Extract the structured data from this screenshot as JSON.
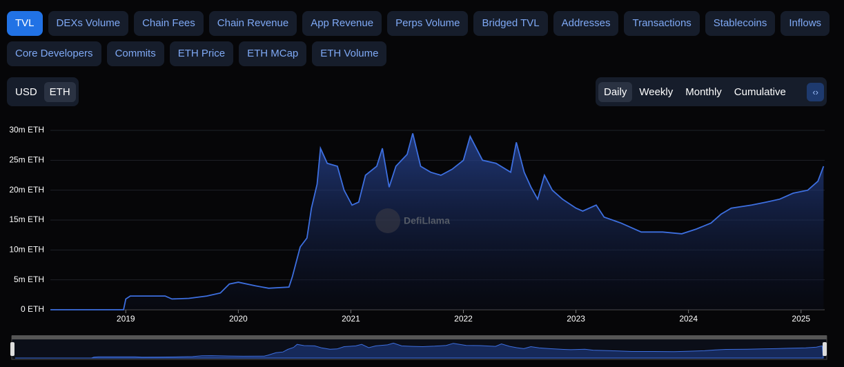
{
  "tabs": [
    "TVL",
    "DEXs Volume",
    "Chain Fees",
    "Chain Revenue",
    "App Revenue",
    "Perps Volume",
    "Bridged TVL",
    "Addresses",
    "Transactions",
    "Stablecoins",
    "Inflows",
    "Core Developers",
    "Commits",
    "ETH Price",
    "ETH MCap",
    "ETH Volume"
  ],
  "currency_toggle": [
    "USD",
    "ETH"
  ],
  "period_toggle": [
    "Daily",
    "Weekly",
    "Monthly",
    "Cumulative"
  ],
  "watermark": "DefiLlama",
  "chart_data": {
    "type": "line",
    "x": [
      2018.33,
      2018.98,
      2019.0,
      2019.04,
      2019.35,
      2019.41,
      2019.56,
      2019.72,
      2019.84,
      2019.92,
      2020.0,
      2020.15,
      2020.27,
      2020.45,
      2020.48,
      2020.55,
      2020.61,
      2020.65,
      2020.7,
      2020.73,
      2020.79,
      2020.88,
      2020.94,
      2021.01,
      2021.07,
      2021.13,
      2021.23,
      2021.28,
      2021.34,
      2021.4,
      2021.5,
      2021.55,
      2021.62,
      2021.71,
      2021.8,
      2021.9,
      2022.0,
      2022.06,
      2022.17,
      2022.29,
      2022.42,
      2022.47,
      2022.54,
      2022.6,
      2022.66,
      2022.72,
      2022.79,
      2022.88,
      2023.0,
      2023.06,
      2023.18,
      2023.25,
      2023.4,
      2023.58,
      2023.77,
      2023.94,
      2024.07,
      2024.2,
      2024.29,
      2024.38,
      2024.56,
      2024.69,
      2024.81,
      2024.93,
      2025.06,
      2025.15,
      2025.2
    ],
    "series": [
      {
        "name": "TVL",
        "color": "#3d6fe0",
        "values": [
          0,
          0,
          1800000,
          2300000,
          2300000,
          1800000,
          1900000,
          2300000,
          2800000,
          4300000,
          4600000,
          4000000,
          3600000,
          3800000,
          5500000,
          10500000,
          12000000,
          17000000,
          21000000,
          27000000,
          24500000,
          24000000,
          20000000,
          17500000,
          18000000,
          22500000,
          24000000,
          27000000,
          20500000,
          24000000,
          26000000,
          29500000,
          24000000,
          23000000,
          22500000,
          23500000,
          25000000,
          29000000,
          25000000,
          24500000,
          23000000,
          28000000,
          23000000,
          20500000,
          18500000,
          22500000,
          20000000,
          18500000,
          17000000,
          16500000,
          17500000,
          15500000,
          14500000,
          13000000,
          13000000,
          12700000,
          13500000,
          14500000,
          16000000,
          17000000,
          17500000,
          18000000,
          18500000,
          19500000,
          20000000,
          21500000,
          24000000
        ]
      }
    ],
    "xlim": [
      2018.33,
      2025.21
    ],
    "xticks": [
      2019,
      2020,
      2021,
      2022,
      2023,
      2024,
      2025
    ],
    "ylim": [
      0,
      30000000
    ],
    "yticks": [
      {
        "value": 0,
        "label": "0 ETH"
      },
      {
        "value": 5000000,
        "label": "5m ETH"
      },
      {
        "value": 10000000,
        "label": "10m ETH"
      },
      {
        "value": 15000000,
        "label": "15m ETH"
      },
      {
        "value": 20000000,
        "label": "20m ETH"
      },
      {
        "value": 25000000,
        "label": "25m ETH"
      },
      {
        "value": 30000000,
        "label": "30m ETH"
      }
    ],
    "grid": true
  }
}
